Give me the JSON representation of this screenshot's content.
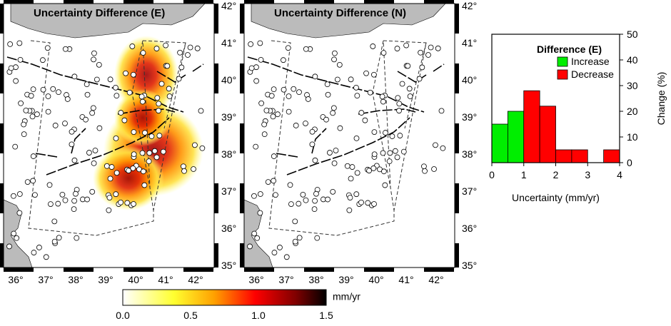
{
  "maps": [
    {
      "title": "Uncertainty Difference (E)",
      "lon_labels": [
        "36°",
        "37°",
        "38°",
        "39°",
        "40°",
        "41°",
        "42°"
      ],
      "lat_labels": [
        "35°",
        "36°",
        "37°",
        "38°",
        "39°",
        "40°",
        "41°",
        "42°"
      ]
    },
    {
      "title": "Uncertainty Difference (N)",
      "lon_labels": [
        "36°",
        "37°",
        "38°",
        "39°",
        "40°",
        "41°",
        "42°"
      ],
      "lat_labels": [
        "35°",
        "36°",
        "37°",
        "38°",
        "39°",
        "40°",
        "41°",
        "42°"
      ]
    }
  ],
  "colorbar": {
    "label": "mm/yr",
    "tick_labels": [
      "0.0",
      "0.5",
      "1.0",
      "1.5"
    ]
  },
  "chart_data": {
    "type": "histogram",
    "legend_title": "Difference (E)",
    "xlabel": "Uncertainty (mm/yr)",
    "ylabel": "Change (%)",
    "bins": [
      0,
      0.5,
      1,
      1.5,
      2,
      2.5,
      3,
      3.5,
      4
    ],
    "series": [
      {
        "name": "Increase",
        "color": "#00ee00",
        "values": [
          15,
          20,
          null,
          null,
          null,
          null,
          null,
          null
        ]
      },
      {
        "name": "Decrease",
        "color": "#ff0000",
        "values": [
          null,
          null,
          28,
          22,
          5,
          5,
          0,
          5
        ]
      }
    ],
    "xlim": [
      0,
      4
    ],
    "xticks": [
      0,
      1,
      2,
      3,
      4
    ],
    "ylim": [
      0,
      50
    ],
    "yticks": [
      0,
      10,
      20,
      30,
      40,
      50
    ]
  }
}
